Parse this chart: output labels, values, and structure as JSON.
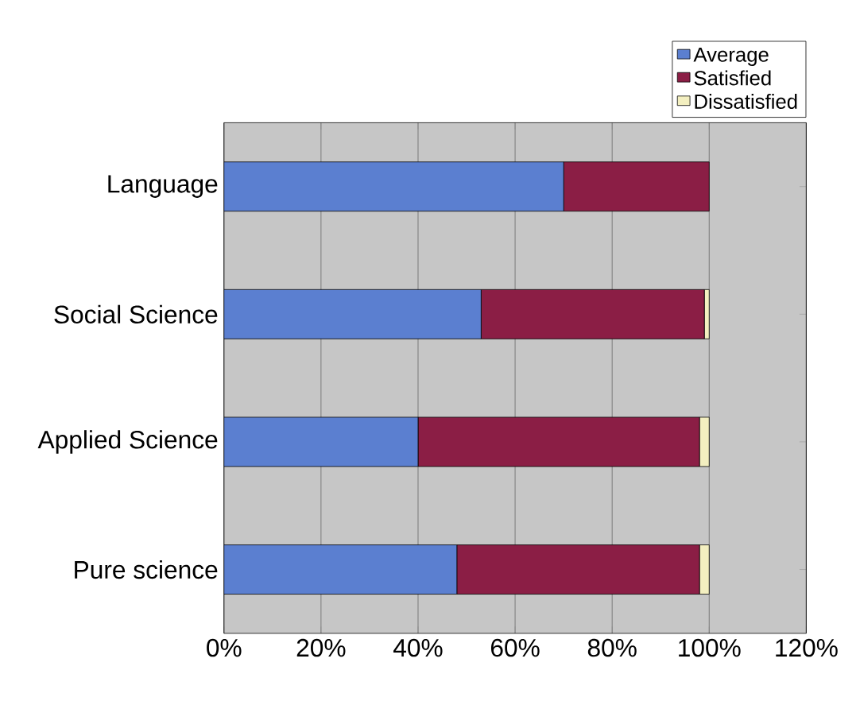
{
  "chart_data": {
    "type": "bar",
    "orientation": "horizontal",
    "stacked": true,
    "categories": [
      "Language",
      "Social Science",
      "Applied Science",
      "Pure science"
    ],
    "series": [
      {
        "name": "Average",
        "color": "#5b7fd0",
        "values": [
          70,
          53,
          40,
          48
        ]
      },
      {
        "name": "Satisfied",
        "color": "#8b1e45",
        "values": [
          30,
          46,
          58,
          50
        ]
      },
      {
        "name": "Dissatisfied",
        "color": "#f3efc0",
        "values": [
          0,
          1,
          2,
          2
        ]
      }
    ],
    "xlim": [
      0,
      120
    ],
    "xticks": [
      {
        "value": 0,
        "label": "0%"
      },
      {
        "value": 20,
        "label": "20%"
      },
      {
        "value": 40,
        "label": "40%"
      },
      {
        "value": 60,
        "label": "60%"
      },
      {
        "value": 80,
        "label": "80%"
      },
      {
        "value": 100,
        "label": "100%"
      },
      {
        "value": 120,
        "label": "120%"
      }
    ],
    "grid": "x",
    "legend": "top right"
  }
}
